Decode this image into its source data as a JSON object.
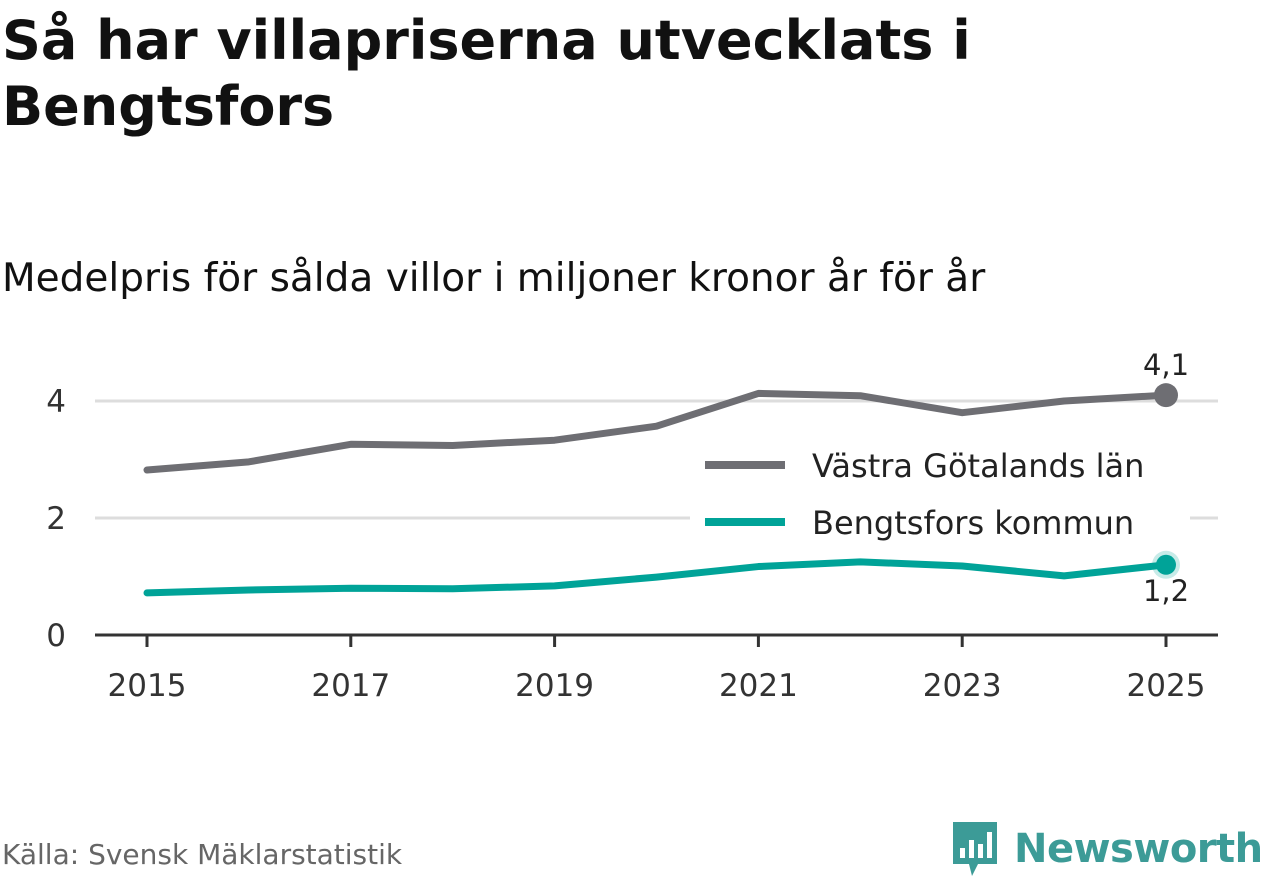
{
  "header": {
    "title": "Så har villapriserna utvecklats i Bengtsfors",
    "subtitle": "Medelpris för sålda villor i miljoner kronor år för år"
  },
  "footer": {
    "source": "Källa: Svensk Mäklarstatistik",
    "brand": "Newsworthy"
  },
  "chart_data": {
    "type": "line",
    "title": "Så har villapriserna utvecklats i Bengtsfors",
    "subtitle": "Medelpris för sålda villor i miljoner kronor år för år",
    "xlabel": "",
    "ylabel": "",
    "x": [
      2015,
      2016,
      2017,
      2018,
      2019,
      2020,
      2021,
      2022,
      2023,
      2024,
      2025
    ],
    "x_ticks": [
      "2015",
      "2017",
      "2019",
      "2021",
      "2023",
      "2025"
    ],
    "y_ticks": [
      "0",
      "2",
      "4"
    ],
    "ylim": [
      0,
      4.3
    ],
    "grid": true,
    "legend_position": "right",
    "series": [
      {
        "name": "Västra Götalands län",
        "color": "#6e6e73",
        "values": [
          2.82,
          2.96,
          3.26,
          3.24,
          3.33,
          3.57,
          4.13,
          4.09,
          3.8,
          4.0,
          4.1
        ],
        "end_label": "4,1"
      },
      {
        "name": "Bengtsfors kommun",
        "color": "#00a398",
        "values": [
          0.72,
          0.77,
          0.8,
          0.79,
          0.84,
          0.99,
          1.17,
          1.25,
          1.18,
          1.01,
          1.2
        ],
        "end_label": "1,2"
      }
    ]
  }
}
